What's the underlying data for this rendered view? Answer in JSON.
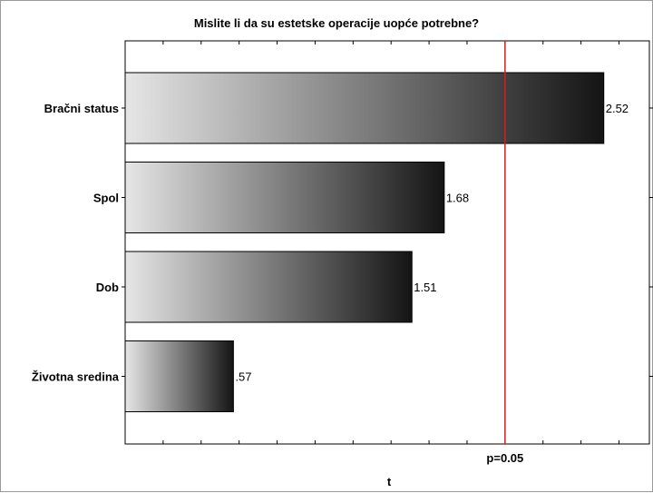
{
  "chart_data": {
    "type": "bar",
    "orientation": "horizontal",
    "title": "Mislite li da su estetske operacije uopće potrebne?",
    "xlabel": "t",
    "ylabel": "",
    "categories": [
      "Bračni status",
      "Spol",
      "Dob",
      "Životna sredina"
    ],
    "values": [
      2.52,
      1.68,
      1.51,
      0.57
    ],
    "data_labels": [
      "2.52",
      "1.68",
      "1.51",
      ".57"
    ],
    "xlim": [
      0,
      2.76
    ],
    "reference_line": {
      "value": 2.0,
      "label": "p=0.05",
      "color": "#cc2222"
    },
    "grid": false,
    "bar_gradient": [
      "#e6e6e6",
      "#141414"
    ],
    "bar_border_color": "#000000"
  }
}
